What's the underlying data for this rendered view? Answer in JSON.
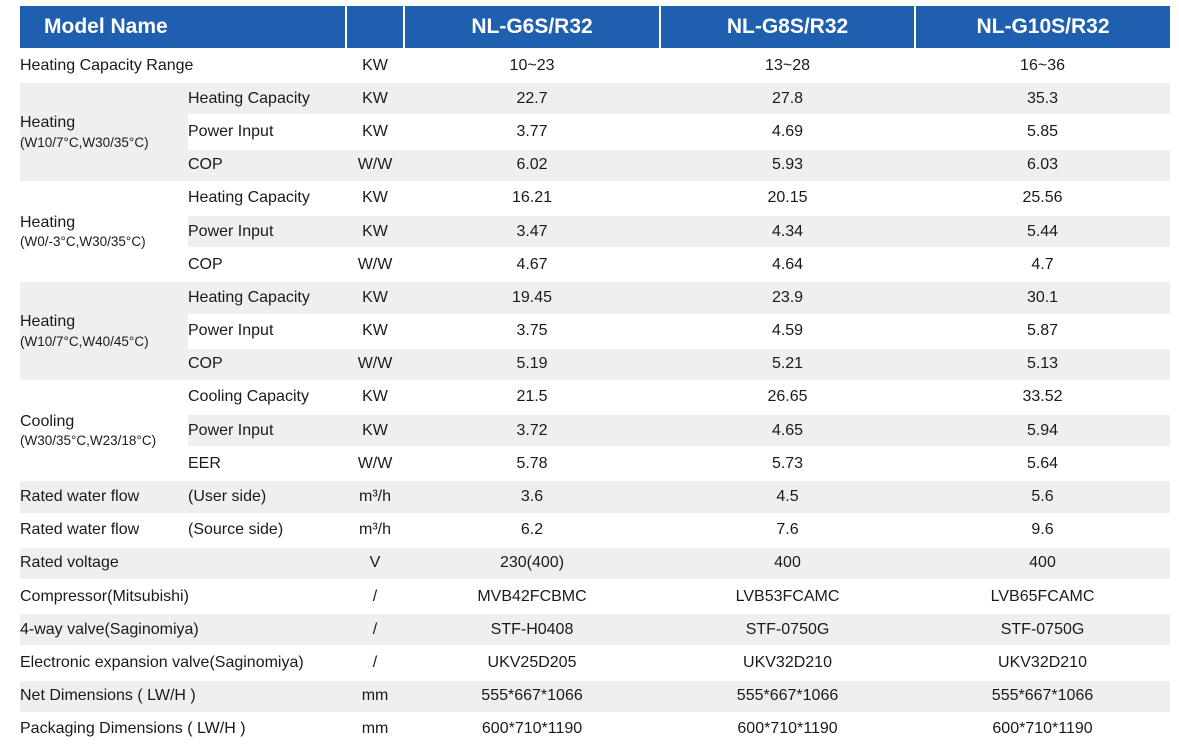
{
  "header": {
    "model_name": "Model Name",
    "models": [
      "NL-G6S/R32",
      "NL-G8S/R32",
      "NL-G10S/R32"
    ]
  },
  "rows": {
    "heating_capacity_range": {
      "label": "Heating Capacity Range",
      "unit": "KW",
      "values": [
        "10~23",
        "13~28",
        "16~36"
      ]
    },
    "heating1": {
      "title": "Heating",
      "cond": "(W10/7°C,W30/35°C)",
      "rows": [
        {
          "label": "Heating Capacity",
          "unit": "KW",
          "values": [
            "22.7",
            "27.8",
            "35.3"
          ]
        },
        {
          "label": "Power Input",
          "unit": "KW",
          "values": [
            "3.77",
            "4.69",
            "5.85"
          ]
        },
        {
          "label": "COP",
          "unit": "W/W",
          "values": [
            "6.02",
            "5.93",
            "6.03"
          ]
        }
      ]
    },
    "heating2": {
      "title": "Heating",
      "cond": "(W0/-3°C,W30/35°C)",
      "rows": [
        {
          "label": "Heating Capacity",
          "unit": "KW",
          "values": [
            "16.21",
            "20.15",
            "25.56"
          ]
        },
        {
          "label": "Power Input",
          "unit": "KW",
          "values": [
            "3.47",
            "4.34",
            "5.44"
          ]
        },
        {
          "label": "COP",
          "unit": "W/W",
          "values": [
            "4.67",
            "4.64",
            "4.7"
          ]
        }
      ]
    },
    "heating3": {
      "title": "Heating",
      "cond": "(W10/7°C,W40/45°C)",
      "rows": [
        {
          "label": "Heating Capacity",
          "unit": "KW",
          "values": [
            "19.45",
            "23.9",
            "30.1"
          ]
        },
        {
          "label": "Power Input",
          "unit": "KW",
          "values": [
            "3.75",
            "4.59",
            "5.87"
          ]
        },
        {
          "label": "COP",
          "unit": "W/W",
          "values": [
            "5.19",
            "5.21",
            "5.13"
          ]
        }
      ]
    },
    "cooling": {
      "title": "Cooling",
      "cond": "(W30/35°C,W23/18°C)",
      "rows": [
        {
          "label": "Cooling Capacity",
          "unit": "KW",
          "values": [
            "21.5",
            "26.65",
            "33.52"
          ]
        },
        {
          "label": "Power Input",
          "unit": "KW",
          "values": [
            "3.72",
            "4.65",
            "5.94"
          ]
        },
        {
          "label": "EER",
          "unit": "W/W",
          "values": [
            "5.78",
            "5.73",
            "5.64"
          ]
        }
      ]
    },
    "water_flow_user": {
      "label": "Rated water flow",
      "sub": "(User side)",
      "unit": "m³/h",
      "values": [
        "3.6",
        "4.5",
        "5.6"
      ]
    },
    "water_flow_source": {
      "label": "Rated water flow",
      "sub": "(Source side)",
      "unit": "m³/h",
      "values": [
        "6.2",
        "7.6",
        "9.6"
      ]
    },
    "rated_voltage": {
      "label": "Rated voltage",
      "unit": "V",
      "values": [
        "230(400)",
        "400",
        "400"
      ]
    },
    "compressor": {
      "label": "Compressor(Mitsubishi)",
      "unit": "/",
      "values": [
        "MVB42FCBMC",
        "LVB53FCAMC",
        "LVB65FCAMC"
      ]
    },
    "four_way_valve": {
      "label": "4-way valve(Saginomiya)",
      "unit": "/",
      "values": [
        "STF-H0408",
        "STF-0750G",
        "STF-0750G"
      ]
    },
    "expansion_valve": {
      "label": "Electronic expansion valve(Saginomiya)",
      "unit": "/",
      "values": [
        "UKV25D205",
        "UKV32D210",
        "UKV32D210"
      ]
    },
    "net_dimensions": {
      "label": "Net Dimensions ( LW/H )",
      "unit": "mm",
      "values": [
        "555*667*1066",
        "555*667*1066",
        "555*667*1066"
      ]
    },
    "packaging_dimensions": {
      "label": "Packaging Dimensions ( LW/H )",
      "unit": "mm",
      "values": [
        "600*710*1190",
        "600*710*1190",
        "600*710*1190"
      ]
    }
  },
  "colors": {
    "header_bg": "#1f5fb0",
    "row_shade": "#efefef"
  }
}
